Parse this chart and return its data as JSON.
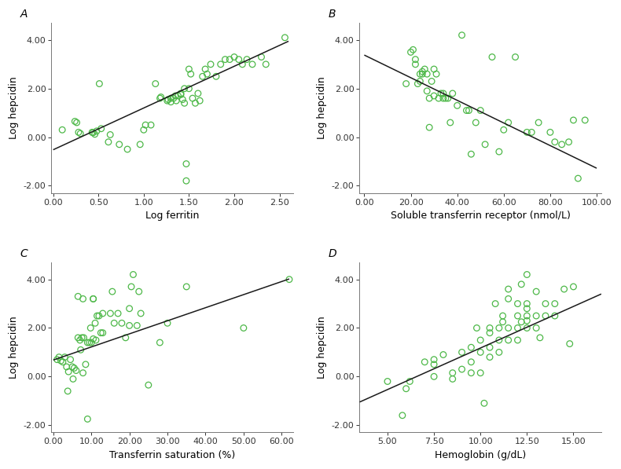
{
  "panel_A": {
    "label": "A",
    "xlabel": "Log ferritin",
    "ylabel": "Log hepcidin",
    "xlim": [
      -0.02,
      2.65
    ],
    "ylim": [
      -2.3,
      4.7
    ],
    "xticks": [
      0.0,
      0.5,
      1.0,
      1.5,
      2.0,
      2.5
    ],
    "yticks": [
      -2.0,
      0.0,
      2.0,
      4.0
    ],
    "x": [
      0.1,
      0.24,
      0.26,
      0.28,
      0.3,
      0.43,
      0.44,
      0.46,
      0.48,
      0.51,
      0.53,
      0.61,
      0.63,
      0.73,
      0.82,
      0.96,
      1.0,
      1.02,
      1.08,
      1.13,
      1.18,
      1.19,
      1.26,
      1.27,
      1.3,
      1.3,
      1.33,
      1.35,
      1.36,
      1.38,
      1.41,
      1.41,
      1.43,
      1.45,
      1.45,
      1.47,
      1.47,
      1.5,
      1.5,
      1.52,
      1.54,
      1.57,
      1.6,
      1.62,
      1.65,
      1.68,
      1.7,
      1.74,
      1.8,
      1.85,
      1.9,
      1.95,
      2.0,
      2.05,
      2.09,
      2.14,
      2.2,
      2.3,
      2.35,
      2.56
    ],
    "y": [
      0.3,
      0.65,
      0.6,
      0.2,
      0.15,
      0.2,
      0.18,
      0.12,
      0.25,
      2.2,
      0.35,
      -0.2,
      0.1,
      -0.3,
      -0.5,
      -0.3,
      0.3,
      0.5,
      0.5,
      2.2,
      1.6,
      1.65,
      1.5,
      1.55,
      1.6,
      1.45,
      1.6,
      1.7,
      1.5,
      1.7,
      1.75,
      1.8,
      1.55,
      2.0,
      1.4,
      -1.8,
      -1.1,
      2.0,
      2.8,
      2.6,
      1.6,
      1.4,
      1.8,
      1.5,
      2.5,
      2.8,
      2.6,
      3.0,
      2.5,
      3.0,
      3.2,
      3.2,
      3.3,
      3.2,
      3.0,
      3.2,
      3.0,
      3.3,
      3.0,
      4.1
    ],
    "line_x": [
      0.0,
      2.6
    ],
    "line_y": [
      -0.52,
      3.95
    ]
  },
  "panel_B": {
    "label": "B",
    "xlabel": "Soluble transferrin receptor (nmol/L)",
    "ylabel": "Log hepcidin",
    "xlim": [
      -2.0,
      102.0
    ],
    "ylim": [
      -2.3,
      4.7
    ],
    "xticks": [
      0.0,
      20.0,
      40.0,
      60.0,
      80.0,
      100.0
    ],
    "yticks": [
      -2.0,
      0.0,
      2.0,
      4.0
    ],
    "x": [
      18,
      20,
      21,
      22,
      22,
      23,
      24,
      24,
      25,
      25,
      26,
      27,
      27,
      28,
      28,
      29,
      30,
      30,
      31,
      32,
      33,
      34,
      34,
      35,
      36,
      37,
      38,
      40,
      42,
      44,
      45,
      46,
      48,
      50,
      52,
      55,
      58,
      60,
      62,
      65,
      70,
      72,
      75,
      80,
      82,
      85,
      88,
      90,
      92,
      95
    ],
    "y": [
      2.2,
      3.5,
      3.6,
      3.2,
      3.0,
      2.2,
      2.3,
      2.6,
      2.7,
      2.6,
      2.8,
      1.9,
      2.6,
      1.6,
      0.4,
      2.3,
      2.8,
      1.7,
      2.6,
      1.6,
      1.8,
      1.8,
      1.6,
      1.6,
      1.6,
      0.6,
      1.8,
      1.3,
      4.2,
      1.1,
      1.1,
      -0.7,
      0.6,
      1.1,
      -0.3,
      3.3,
      -0.6,
      0.3,
      0.6,
      3.3,
      0.2,
      0.2,
      0.6,
      0.2,
      -0.2,
      -0.3,
      -0.2,
      0.7,
      -1.7,
      0.7
    ],
    "line_x": [
      0.0,
      100.0
    ],
    "line_y": [
      3.38,
      -1.28
    ]
  },
  "panel_C": {
    "label": "C",
    "xlabel": "Transferrin saturation (%)",
    "ylabel": "Log hepcidin",
    "xlim": [
      -0.5,
      63.0
    ],
    "ylim": [
      -2.3,
      4.7
    ],
    "xticks": [
      0.0,
      10.0,
      20.0,
      30.0,
      40.0,
      50.0,
      60.0
    ],
    "yticks": [
      -2.0,
      0.0,
      2.0,
      4.0
    ],
    "x": [
      1.0,
      1.5,
      2.0,
      2.5,
      3.0,
      3.5,
      4.0,
      4.5,
      5.0,
      5.2,
      5.5,
      6.0,
      6.5,
      7.0,
      7.2,
      7.5,
      7.8,
      8.0,
      8.5,
      9.0,
      9.0,
      9.5,
      9.8,
      10.0,
      10.5,
      10.5,
      11.0,
      11.2,
      11.5,
      12.0,
      12.5,
      13.0,
      15.0,
      15.5,
      16.0,
      17.0,
      18.0,
      19.0,
      20.0,
      20.5,
      21.0,
      22.0,
      22.5,
      23.0,
      25.0,
      28.0,
      30.0,
      35.0,
      50.0,
      62.0,
      3.8,
      6.5,
      7.8,
      10.5,
      13.0,
      20.0
    ],
    "y": [
      0.7,
      0.8,
      0.65,
      0.6,
      0.8,
      0.4,
      0.2,
      0.7,
      0.4,
      -0.1,
      0.35,
      0.25,
      1.6,
      1.5,
      1.1,
      1.6,
      0.15,
      1.6,
      0.5,
      1.4,
      -1.75,
      1.4,
      2.0,
      1.4,
      3.2,
      1.55,
      2.2,
      1.5,
      2.5,
      2.5,
      1.8,
      2.6,
      2.6,
      3.5,
      2.2,
      2.6,
      2.2,
      1.6,
      2.1,
      3.7,
      4.2,
      2.1,
      3.5,
      2.6,
      -0.35,
      1.4,
      2.2,
      3.7,
      2.0,
      4.0,
      -0.6,
      3.3,
      3.2,
      3.2,
      1.8,
      2.8
    ],
    "line_x": [
      0.0,
      62.0
    ],
    "line_y": [
      0.68,
      4.02
    ]
  },
  "panel_D": {
    "label": "D",
    "xlabel": "Hemoglobin (g/dL)",
    "ylabel": "Log hepcidin",
    "xlim": [
      3.5,
      16.5
    ],
    "ylim": [
      -2.3,
      4.7
    ],
    "xticks": [
      5.0,
      7.5,
      10.0,
      12.5,
      15.0
    ],
    "yticks": [
      -2.0,
      0.0,
      2.0,
      4.0
    ],
    "x": [
      5.0,
      5.8,
      6.2,
      7.0,
      7.5,
      7.5,
      8.0,
      8.5,
      8.5,
      9.0,
      9.0,
      9.5,
      9.5,
      10.0,
      10.0,
      10.0,
      10.5,
      10.5,
      10.5,
      11.0,
      11.0,
      11.0,
      11.2,
      11.5,
      11.5,
      12.0,
      12.0,
      12.0,
      12.0,
      12.2,
      12.5,
      12.5,
      12.5,
      12.5,
      13.0,
      13.0,
      13.0,
      13.5,
      13.5,
      14.0,
      14.0,
      14.5,
      15.0,
      6.0,
      7.5,
      9.5,
      10.5,
      11.5,
      12.5,
      14.8,
      10.2,
      11.5,
      12.2,
      10.8,
      12.5,
      13.2,
      9.8,
      11.2
    ],
    "y": [
      -0.2,
      -1.6,
      -0.2,
      0.6,
      0.5,
      0.7,
      0.9,
      -0.1,
      0.15,
      0.3,
      1.0,
      1.2,
      0.15,
      0.15,
      1.0,
      1.5,
      0.8,
      1.2,
      1.8,
      1.0,
      1.5,
      2.0,
      2.25,
      1.5,
      2.0,
      1.5,
      2.0,
      2.5,
      3.0,
      2.25,
      2.0,
      2.5,
      3.0,
      2.3,
      2.0,
      2.5,
      3.5,
      2.5,
      3.0,
      2.5,
      3.0,
      3.6,
      3.7,
      -0.5,
      0.0,
      0.6,
      2.0,
      3.6,
      4.2,
      1.35,
      -1.1,
      3.2,
      3.8,
      3.0,
      2.8,
      1.6,
      2.0,
      2.5
    ],
    "line_x": [
      3.5,
      16.5
    ],
    "line_y": [
      -1.05,
      3.4
    ]
  },
  "scatter_color": "#4db848",
  "line_color": "#1a1a1a",
  "marker_size": 5.5,
  "marker_linewidth": 0.9,
  "line_width": 1.1,
  "bg_color": "#ffffff",
  "tick_fontsize": 8,
  "label_fontsize": 9,
  "panel_label_fontsize": 10,
  "spine_color": "#777777"
}
